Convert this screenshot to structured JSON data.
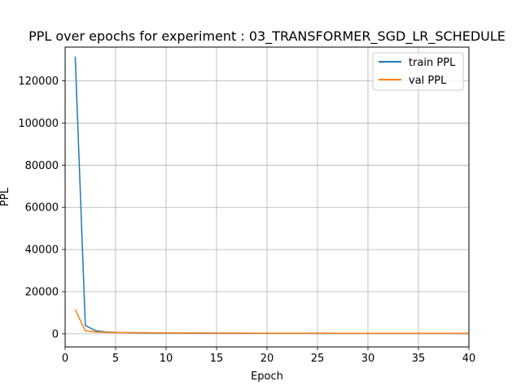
{
  "chart_data": {
    "type": "line",
    "title": "PPL over epochs for experiment : 03_TRANSFORMER_SGD_LR_SCHEDULE",
    "xlabel": "Epoch",
    "ylabel": "PPL",
    "xlim": [
      0,
      40
    ],
    "ylim": [
      -6200,
      136000
    ],
    "xticks": [
      0,
      5,
      10,
      15,
      20,
      25,
      30,
      35,
      40
    ],
    "yticks": [
      0,
      20000,
      40000,
      60000,
      80000,
      100000,
      120000
    ],
    "grid": true,
    "legend_position": "upper right",
    "x": [
      1,
      2,
      3,
      4,
      5,
      6,
      7,
      8,
      9,
      10,
      11,
      12,
      13,
      14,
      15,
      16,
      17,
      18,
      19,
      20,
      21,
      22,
      23,
      24,
      25,
      26,
      27,
      28,
      29,
      30,
      31,
      32,
      33,
      34,
      35,
      36,
      37,
      38,
      39,
      40
    ],
    "series": [
      {
        "name": "train PPL",
        "color": "#1f77b4",
        "values": [
          131500,
          4000,
          1500,
          900,
          700,
          600,
          550,
          500,
          450,
          420,
          390,
          360,
          340,
          320,
          300,
          290,
          280,
          270,
          260,
          250,
          245,
          240,
          235,
          230,
          225,
          220,
          215,
          210,
          205,
          200,
          198,
          196,
          194,
          192,
          190,
          188,
          186,
          184,
          182,
          180
        ]
      },
      {
        "name": "val PPL",
        "color": "#ff7f0e",
        "values": [
          11500,
          1500,
          900,
          700,
          650,
          600,
          550,
          520,
          500,
          480,
          450,
          420,
          400,
          380,
          360,
          350,
          340,
          330,
          320,
          310,
          305,
          300,
          295,
          290,
          285,
          280,
          275,
          270,
          265,
          260,
          258,
          256,
          254,
          252,
          250,
          248,
          246,
          244,
          242,
          240
        ]
      }
    ]
  }
}
